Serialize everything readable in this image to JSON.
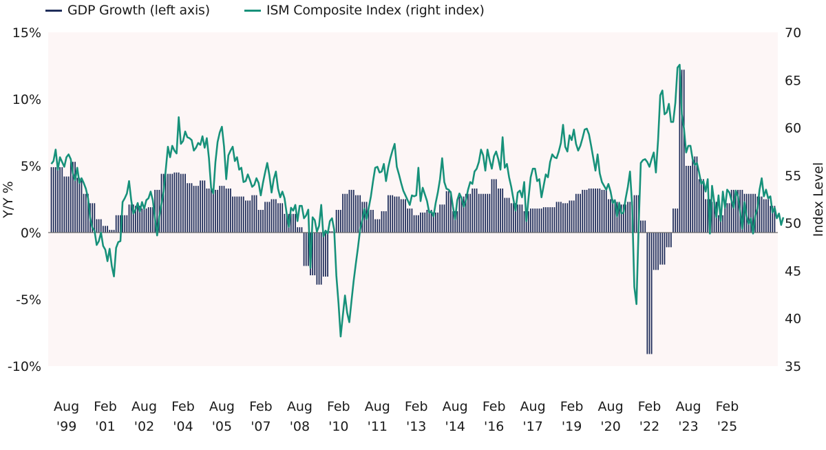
{
  "chart_data": {
    "type": "bar+line",
    "title": "",
    "legend": [
      {
        "name": "GDP Growth (left axis)",
        "color": "#1f2d5a"
      },
      {
        "name": "ISM Composite Index (right index)",
        "color": "#17917a"
      }
    ],
    "legend_position": "top-left",
    "left_axis": {
      "label": "Y/Y %",
      "ylim": [
        -10,
        15
      ],
      "ticks": [
        15,
        10,
        5,
        0,
        -5,
        -10
      ],
      "tick_labels": [
        "15%",
        "10%",
        "5%",
        "0%",
        "-5%",
        "-10%"
      ]
    },
    "right_axis": {
      "label": "Index Level",
      "ylim": [
        35,
        70
      ],
      "ticks": [
        70,
        65,
        60,
        55,
        50,
        45,
        40,
        35
      ],
      "tick_labels": [
        "70",
        "65",
        "60",
        "55",
        "50",
        "45",
        "40",
        "35"
      ]
    },
    "x_tick_labels": [
      [
        "Aug",
        "'99"
      ],
      [
        "Feb",
        "'01"
      ],
      [
        "Aug",
        "'02"
      ],
      [
        "Feb",
        "'04"
      ],
      [
        "Aug",
        "'05"
      ],
      [
        "Feb",
        "'07"
      ],
      [
        "Aug",
        "'08"
      ],
      [
        "Feb",
        "'10"
      ],
      [
        "Aug",
        "'11"
      ],
      [
        "Feb",
        "'13"
      ],
      [
        "Aug",
        "'14"
      ],
      [
        "Feb",
        "'16"
      ],
      [
        "Aug",
        "'17"
      ],
      [
        "Feb",
        "'19"
      ],
      [
        "Aug",
        "'20"
      ],
      [
        "Feb",
        "'22"
      ],
      [
        "Aug",
        "'23"
      ],
      [
        "Feb",
        "'25"
      ]
    ],
    "x_start": "Aug 1999",
    "grid": false,
    "background_color": "#fdf6f6",
    "series": [
      {
        "name": "GDP Growth (left axis)",
        "type": "bar",
        "frequency": "quarterly",
        "start": "Q3 1999",
        "values": [
          4.9,
          4.9,
          4.2,
          5.3,
          4.1,
          2.9,
          2.2,
          1.0,
          0.5,
          0.2,
          1.3,
          1.3,
          2.1,
          2.0,
          1.8,
          1.9,
          3.2,
          4.4,
          4.4,
          4.5,
          4.4,
          3.7,
          3.5,
          3.9,
          3.3,
          3.2,
          3.5,
          3.3,
          2.7,
          2.7,
          2.4,
          2.8,
          1.7,
          2.3,
          2.5,
          2.2,
          1.4,
          1.4,
          0.4,
          -2.5,
          -3.2,
          -3.9,
          -3.3,
          0.1,
          1.7,
          2.9,
          3.2,
          2.8,
          2.3,
          1.7,
          1.0,
          1.6,
          2.8,
          2.7,
          2.5,
          1.8,
          1.3,
          1.5,
          1.7,
          1.5,
          2.1,
          3.1,
          1.6,
          2.7,
          2.9,
          3.3,
          2.9,
          2.9,
          4.0,
          3.3,
          2.6,
          2.2,
          2.1,
          1.6,
          1.8,
          1.8,
          1.9,
          1.9,
          2.3,
          2.2,
          2.4,
          2.9,
          3.2,
          3.3,
          3.3,
          3.2,
          2.5,
          2.3,
          2.1,
          2.3,
          2.8,
          0.9,
          -9.1,
          -2.8,
          -2.4,
          -1.1,
          1.8,
          12.2,
          5.0,
          5.7,
          4.0,
          2.5,
          2.3,
          1.3,
          2.2,
          3.2,
          3.2,
          2.9,
          2.9,
          2.7,
          2.5,
          2.0
        ]
      },
      {
        "name": "ISM Composite Index (right index)",
        "type": "line",
        "frequency": "monthly",
        "start": "Aug 1999",
        "values": [
          56.2,
          56.5,
          57.7,
          55.6,
          56.9,
          56.4,
          55.9,
          56.9,
          57.2,
          56.7,
          55.2,
          54.5,
          55.8,
          54.2,
          54.7,
          54.2,
          53.6,
          52.6,
          50.5,
          49.5,
          49.2,
          47.7,
          48.1,
          49.0,
          47.6,
          47.2,
          46.0,
          47.3,
          45.5,
          44.4,
          47.4,
          48.0,
          48.1,
          52.2,
          52.6,
          53.1,
          54.4,
          52.4,
          51.0,
          51.4,
          52.1,
          51.2,
          52.2,
          51.5,
          52.4,
          52.6,
          53.3,
          52.4,
          50.5,
          48.7,
          50.7,
          52.0,
          53.3,
          55.6,
          58.0,
          56.9,
          58.1,
          57.6,
          57.3,
          61.1,
          58.3,
          58.6,
          59.6,
          59.0,
          58.9,
          58.7,
          57.6,
          57.9,
          58.4,
          58.2,
          59.1,
          57.9,
          58.9,
          56.8,
          53.7,
          53.1,
          56.4,
          58.5,
          59.5,
          60.1,
          58.0,
          54.6,
          57.1,
          57.6,
          58.0,
          56.5,
          56.9,
          55.6,
          55.8,
          54.3,
          54.4,
          55.1,
          54.5,
          53.8,
          54.0,
          54.7,
          54.2,
          52.9,
          54.2,
          55.3,
          56.3,
          55.0,
          53.2,
          54.6,
          55.4,
          53.6,
          52.7,
          53.3,
          52.6,
          51.0,
          49.6,
          51.6,
          51.3,
          51.9,
          50.2,
          51.8,
          51.8,
          50.5,
          50.8,
          51.4,
          45.3,
          50.6,
          50.3,
          49.1,
          49.7,
          51.9,
          48.6,
          49.2,
          48.9,
          50.2,
          50.5,
          49.3,
          44.5,
          41.6,
          38.1,
          40.3,
          42.4,
          40.6,
          39.6,
          41.8,
          43.9,
          45.7,
          47.4,
          49.3,
          50.3,
          51.5,
          50.4,
          51.6,
          52.8,
          54.4,
          55.8,
          55.9,
          55.3,
          55.4,
          56.2,
          54.4,
          55.8,
          56.8,
          57.6,
          58.3,
          55.9,
          55.1,
          54.2,
          53.4,
          52.9,
          52.4,
          51.9,
          52.9,
          52.8,
          52.9,
          55.8,
          52.3,
          53.7,
          53.0,
          52.3,
          51.1,
          51.2,
          50.7,
          52.1,
          53.2,
          54.6,
          56.8,
          54.3,
          53.6,
          53.5,
          53.2,
          51.7,
          50.4,
          52.4,
          53.1,
          52.6,
          51.7,
          52.4,
          53.5,
          54.3,
          54.1,
          55.4,
          55.7,
          56.4,
          57.7,
          57.1,
          55.5,
          57.7,
          56.6,
          55.7,
          57.0,
          57.5,
          56.7,
          55.6,
          59.0,
          55.8,
          56.2,
          54.8,
          53.8,
          52.5,
          51.3,
          53.2,
          53.4,
          52.7,
          54.3,
          50.2,
          52.6,
          54.8,
          55.7,
          55.7,
          54.4,
          54.6,
          52.7,
          53.9,
          55.1,
          54.8,
          56.4,
          57.2,
          56.9,
          56.8,
          57.5,
          58.4,
          60.3,
          58.0,
          57.5,
          59.2,
          58.7,
          59.8,
          58.3,
          57.6,
          58.1,
          58.9,
          59.8,
          59.9,
          59.3,
          58.1,
          56.8,
          55.5,
          57.2,
          55.2,
          54.3,
          53.9,
          53.5,
          54.1,
          53.3,
          52.1,
          52.4,
          50.7,
          52.1,
          51.0,
          51.1,
          52.6,
          53.8,
          55.4,
          51.8,
          43.3,
          41.5,
          49.7,
          56.3,
          56.6,
          56.7,
          56.4,
          55.9,
          56.7,
          57.4,
          55.3,
          58.7,
          63.4,
          63.9,
          61.4,
          61.6,
          62.5,
          60.6,
          60.6,
          62.6,
          66.3,
          66.6,
          61.4,
          59.9,
          57.4,
          58.1,
          58.1,
          56.7,
          56.1,
          56.3,
          55.3,
          54.1,
          54.4,
          53.3,
          54.6,
          48.9,
          53.9,
          52.2,
          50.6,
          52.9,
          50.2,
          53.3,
          51.6,
          53.5,
          53.2,
          52.4,
          51.6,
          53.4,
          52.8,
          51.2,
          49.4,
          52.2,
          50.7,
          49.9,
          50.5,
          48.9,
          50.8,
          51.5,
          53.5,
          54.7,
          52.8,
          53.5,
          52.6,
          52.8,
          51.1,
          51.6,
          50.5,
          51.0,
          49.8,
          50.6
        ]
      }
    ],
    "zero_line": true
  }
}
